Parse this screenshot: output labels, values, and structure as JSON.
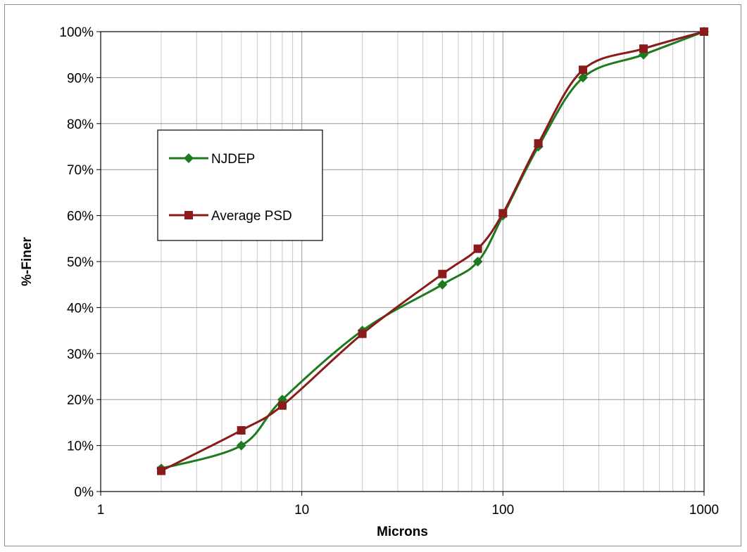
{
  "chart_data": {
    "type": "line",
    "title": "",
    "xlabel": "Microns",
    "ylabel": "%-Finer",
    "x_scale": "log",
    "xlim": [
      1,
      1000
    ],
    "ylim": [
      0,
      100
    ],
    "x_ticks": [
      "1",
      "10",
      "100",
      "1000"
    ],
    "y_ticks": [
      "0%",
      "10%",
      "20%",
      "30%",
      "40%",
      "50%",
      "60%",
      "70%",
      "80%",
      "90%",
      "100%"
    ],
    "grid": true,
    "legend_position": "upper-left",
    "series": [
      {
        "name": "NJDEP",
        "color": "#1e7a1e",
        "marker": "diamond",
        "x": [
          2,
          5,
          8,
          20,
          50,
          75,
          100,
          150,
          250,
          500,
          1000
        ],
        "y": [
          5,
          10,
          20,
          35,
          45,
          50,
          60,
          75,
          90,
          95,
          100
        ]
      },
      {
        "name": "Average PSD",
        "color": "#8b1a1a",
        "marker": "square",
        "x": [
          2,
          5,
          8,
          20,
          50,
          75,
          100,
          150,
          250,
          500,
          1000
        ],
        "y": [
          4.5,
          13.3,
          18.7,
          34.3,
          47.3,
          52.8,
          60.5,
          75.7,
          91.7,
          96.3,
          100
        ]
      }
    ]
  }
}
